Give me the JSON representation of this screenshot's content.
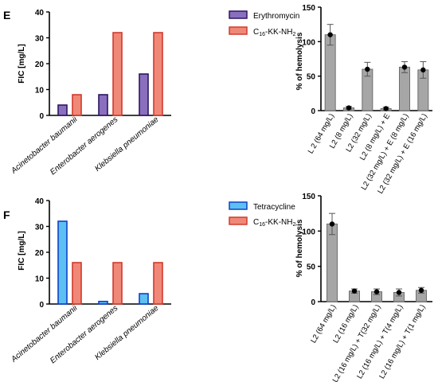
{
  "panels": [
    {
      "letter": "E",
      "fic": {
        "ylabel": "FIC [mg/L]",
        "ylim": [
          0,
          40
        ],
        "yticks": [
          0,
          10,
          20,
          30,
          40
        ],
        "categories": [
          "Acinetobacter baumanii",
          "Enterobacter aerogenes",
          "Klebsiella pneumoniae"
        ],
        "legend": [
          {
            "label": "Erythromycin",
            "fill": "#8a6fbf",
            "stroke": "#2c1660"
          },
          {
            "label": "C16-KK-NH2",
            "base": "C",
            "sub": "16",
            "mid": "-KK-NH",
            "sub2": "2",
            "fill": "#f08878",
            "stroke": "#d13a2c"
          }
        ]
      },
      "hemo": {
        "ylabel": "% of hemolysis",
        "ylim": [
          0,
          150
        ],
        "yticks": [
          0,
          50,
          100,
          150
        ],
        "categories": [
          "L 2 (64 mg/L)",
          "L2 (8 mg/L)",
          "L2 (32 mg/L)",
          "L2 (8 mg/L) + E",
          "L2 (32 mg/L) + E (8 mg/L)",
          "L2 (32 mg/L) + E (16 mg/L)"
        ]
      }
    },
    {
      "letter": "F",
      "fic": {
        "ylabel": "FIC [mg/L]",
        "ylim": [
          0,
          40
        ],
        "yticks": [
          0,
          10,
          20,
          30,
          40
        ],
        "categories": [
          "Acinetobacter baumanii",
          "Enterobacter aerogenes",
          "Klebsiella pneumoniae"
        ],
        "legend": [
          {
            "label": "Tetracycline",
            "fill": "#5cc0f2",
            "stroke": "#1040c8"
          },
          {
            "label": "C16-KK-NH2",
            "base": "C",
            "sub": "16",
            "mid": "-KK-NH",
            "sub2": "2",
            "fill": "#f08878",
            "stroke": "#d13a2c"
          }
        ]
      },
      "hemo": {
        "ylabel": "% of hemolysis",
        "ylim": [
          0,
          150
        ],
        "yticks": [
          0,
          50,
          100,
          150
        ],
        "categories": [
          "L2 (64 mg/L)",
          "L2 (16 mg/L)",
          "L2 (16 mg/L) + T(32 mg/L)",
          "L2 (16 mg/L) + T(4 mg/L)",
          "L2 (16 mg/L) + T(1 mg/L)"
        ]
      }
    }
  ],
  "colors": {
    "hemo_bar": "#a6a6a6",
    "hemo_bar_stroke": "#6e6e6e",
    "point": "#000000"
  },
  "chart_data": [
    {
      "panel": "E",
      "type": "bar",
      "categories": [
        "Acinetobacter baumanii",
        "Enterobacter aerogenes",
        "Klebsiella pneumoniae"
      ],
      "series": [
        {
          "name": "Erythromycin",
          "values": [
            4,
            8,
            16
          ]
        },
        {
          "name": "C16-KK-NH2",
          "values": [
            8,
            32,
            32
          ]
        }
      ],
      "ylabel": "FIC [mg/L]",
      "ylim": [
        0,
        40
      ],
      "legend": "top-right"
    },
    {
      "panel": "E",
      "type": "bar",
      "categories": [
        "L 2 (64 mg/L)",
        "L2 (8 mg/L)",
        "L2 (32 mg/L)",
        "L2 (8 mg/L) + E",
        "L2 (32 mg/L) + E (8 mg/L)",
        "L2 (32 mg/L) + E (16 mg/L)"
      ],
      "values": [
        110,
        4,
        60,
        3,
        63,
        59
      ],
      "error": [
        15,
        2,
        10,
        2,
        8,
        12
      ],
      "ylabel": "% of hemolysis",
      "ylim": [
        0,
        150
      ]
    },
    {
      "panel": "F",
      "type": "bar",
      "categories": [
        "Acinetobacter baumanii",
        "Enterobacter aerogenes",
        "Klebsiella pneumoniae"
      ],
      "series": [
        {
          "name": "Tetracycline",
          "values": [
            32,
            1,
            4
          ]
        },
        {
          "name": "C16-KK-NH2",
          "values": [
            16,
            16,
            16
          ]
        }
      ],
      "ylabel": "FIC [mg/L]",
      "ylim": [
        0,
        40
      ],
      "legend": "top-right"
    },
    {
      "panel": "F",
      "type": "bar",
      "categories": [
        "L2 (64 mg/L)",
        "L2 (16 mg/L)",
        "L2 (16 mg/L) + T(32 mg/L)",
        "L2 (16 mg/L) + T(4 mg/L)",
        "L2 (16 mg/L) + T(1 mg/L)"
      ],
      "values": [
        110,
        15,
        14,
        13,
        16
      ],
      "error": [
        15,
        3,
        4,
        5,
        4
      ],
      "ylabel": "% of hemolysis",
      "ylim": [
        0,
        150
      ]
    }
  ]
}
